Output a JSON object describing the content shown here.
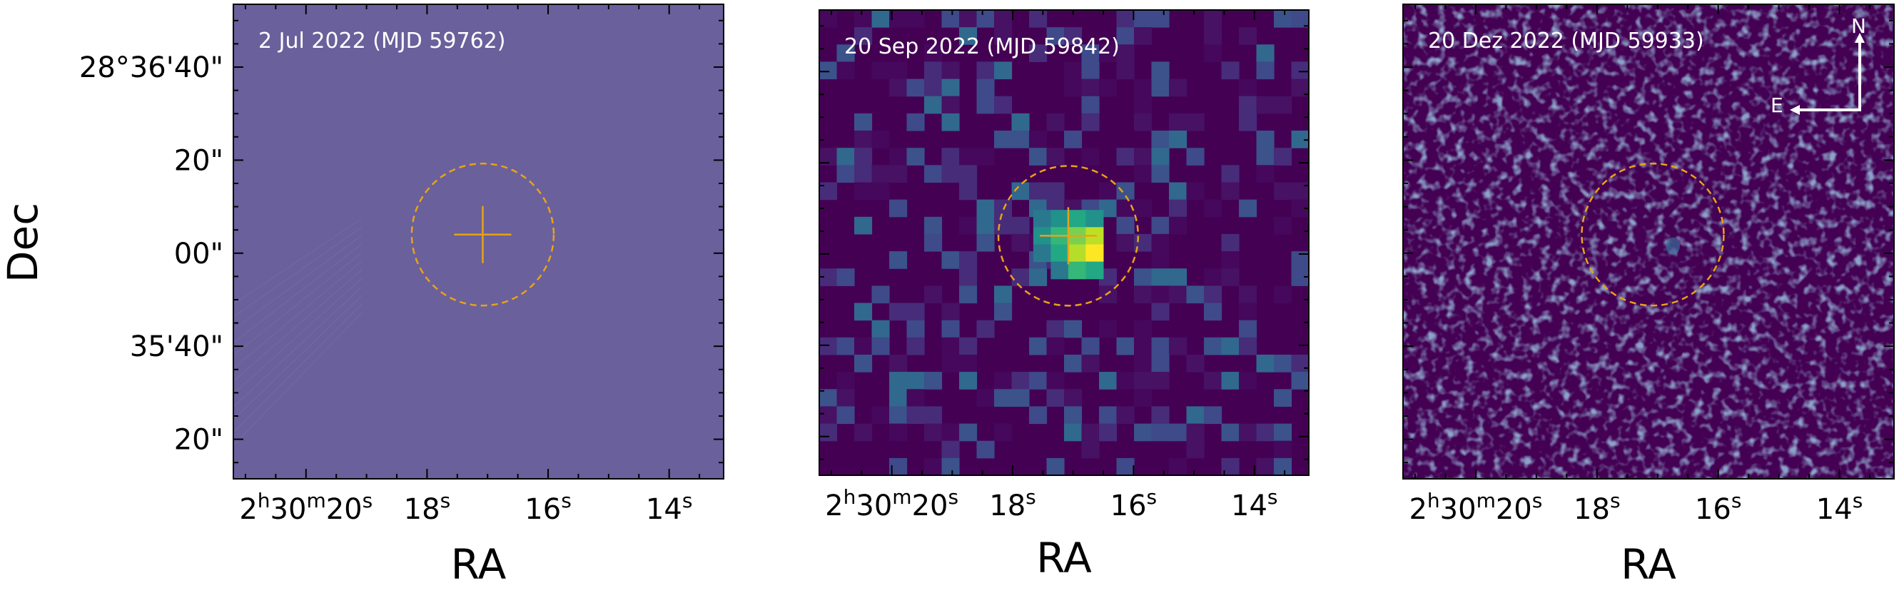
{
  "chart_data": {
    "type": "image",
    "ylabel": "Dec",
    "xlabel": "RA",
    "colormap": "viridis",
    "x_ticks": [
      {
        "value_s": 20,
        "h": "2",
        "h_unit": "h",
        "m": "30",
        "m_unit": "m",
        "s": "20",
        "s_unit": "s"
      },
      {
        "value_s": 18,
        "h": "",
        "h_unit": "",
        "m": "",
        "m_unit": "",
        "s": "18",
        "s_unit": "s"
      },
      {
        "value_s": 16,
        "h": "",
        "h_unit": "",
        "m": "",
        "m_unit": "",
        "s": "16",
        "s_unit": "s"
      },
      {
        "value_s": 14,
        "h": "",
        "h_unit": "",
        "m": "",
        "m_unit": "",
        "s": "14",
        "s_unit": "s"
      }
    ],
    "y_ticks": [
      {
        "label": "28°36'40\"",
        "value_arcsec": 100
      },
      {
        "label": "20\"",
        "value_arcsec": 80
      },
      {
        "label": "00\"",
        "value_arcsec": 60
      },
      {
        "label": "35'40\"",
        "value_arcsec": 40
      },
      {
        "label": "20\"",
        "value_arcsec": 20
      }
    ],
    "ra_range_s": [
      13.1,
      21.2
    ],
    "dec_range_arcsec": [
      11.5,
      113.5
    ],
    "source_position": {
      "ra_s": 17.08,
      "dec_arcsec": 64
    },
    "circle_radius_arcsec": 12.5,
    "panels": [
      {
        "title": "2 Jul 2022 (MJD 59762)",
        "mjd": 59762,
        "texture": "noise",
        "cross": true,
        "detection": false
      },
      {
        "title": "20 Sep 2022 (MJD 59842)",
        "mjd": 59842,
        "texture": "pixel",
        "cross": true,
        "detection": true
      },
      {
        "title": "20 Dez 2022 (MJD 59933)",
        "mjd": 59933,
        "texture": "smooth",
        "cross": false,
        "detection": false
      }
    ],
    "compass": {
      "north": "N",
      "east": "E"
    },
    "colors": {
      "background_dark": "#440154",
      "mid_blue": "#3e4a89",
      "teal": "#35b779",
      "yellow": "#fde725",
      "marker": "#e8a317",
      "text_overlay": "#ffffff"
    }
  }
}
